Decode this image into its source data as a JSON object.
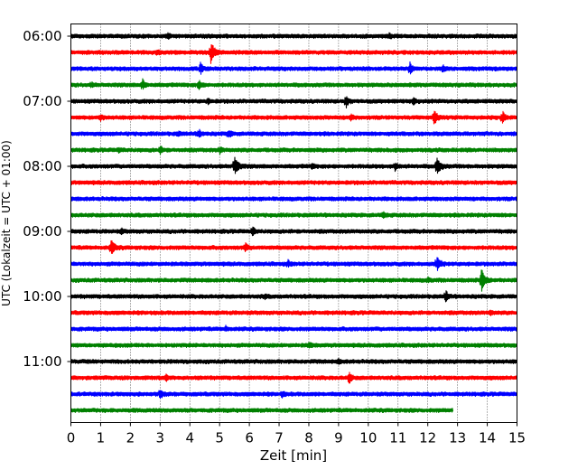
{
  "chart_data": {
    "type": "line",
    "subtype": "helicorder",
    "xlabel": "Zeit  [min]",
    "ylabel": "UTC (Lokalzeit = UTC + 01:00)",
    "xlim": [
      0,
      15
    ],
    "x_ticks": [
      "0",
      "1",
      "2",
      "3",
      "4",
      "5",
      "6",
      "7",
      "8",
      "9",
      "10",
      "11",
      "12",
      "13",
      "14",
      "15"
    ],
    "y_tick_labels": [
      "06:00",
      "07:00",
      "08:00",
      "09:00",
      "10:00",
      "11:00"
    ],
    "y_tick_rows": [
      0,
      4,
      8,
      12,
      16,
      20
    ],
    "grid": "vertical dotted lines at each minute",
    "row_minutes": 15,
    "color_cycle": [
      "#000000",
      "#ff0000",
      "#0000ff",
      "#008000"
    ],
    "rows": [
      {
        "start": "06:00",
        "end_min": 15,
        "events": [
          {
            "t": 3.25,
            "amp": 0.35
          },
          {
            "t": 10.7,
            "amp": 0.3
          }
        ]
      },
      {
        "start": "06:15",
        "end_min": 15,
        "events": [
          {
            "t": 4.7,
            "amp": 1.7
          },
          {
            "t": 2.9,
            "amp": 0.3
          }
        ]
      },
      {
        "start": "06:30",
        "end_min": 15,
        "events": [
          {
            "t": 4.35,
            "amp": 0.9
          },
          {
            "t": 11.4,
            "amp": 0.9
          },
          {
            "t": 12.5,
            "amp": 0.5
          }
        ]
      },
      {
        "start": "06:45",
        "end_min": 15,
        "events": [
          {
            "t": 2.4,
            "amp": 0.9
          },
          {
            "t": 4.3,
            "amp": 0.8
          },
          {
            "t": 0.7,
            "amp": 0.3
          }
        ]
      },
      {
        "start": "07:00",
        "end_min": 15,
        "events": [
          {
            "t": 9.25,
            "amp": 0.9
          },
          {
            "t": 11.5,
            "amp": 0.6
          },
          {
            "t": 4.6,
            "amp": 0.3
          }
        ]
      },
      {
        "start": "07:15",
        "end_min": 15,
        "events": [
          {
            "t": 12.2,
            "amp": 1.2
          },
          {
            "t": 14.5,
            "amp": 1.0
          },
          {
            "t": 1.0,
            "amp": 0.4
          },
          {
            "t": 9.4,
            "amp": 0.4
          }
        ]
      },
      {
        "start": "07:30",
        "end_min": 15,
        "events": [
          {
            "t": 4.3,
            "amp": 0.6
          },
          {
            "t": 5.3,
            "amp": 0.6
          },
          {
            "t": 3.6,
            "amp": 0.3
          }
        ]
      },
      {
        "start": "07:45",
        "end_min": 15,
        "events": [
          {
            "t": 3.0,
            "amp": 0.5
          },
          {
            "t": 5.0,
            "amp": 0.5
          },
          {
            "t": 1.6,
            "amp": 0.3
          }
        ]
      },
      {
        "start": "08:00",
        "end_min": 15,
        "events": [
          {
            "t": 5.5,
            "amp": 1.6
          },
          {
            "t": 12.3,
            "amp": 1.5
          },
          {
            "t": 10.9,
            "amp": 0.6
          },
          {
            "t": 8.1,
            "amp": 0.3
          }
        ]
      },
      {
        "start": "08:15",
        "end_min": 15,
        "events": []
      },
      {
        "start": "08:30",
        "end_min": 15,
        "events": []
      },
      {
        "start": "08:45",
        "end_min": 15,
        "events": [
          {
            "t": 10.5,
            "amp": 0.4
          }
        ]
      },
      {
        "start": "09:00",
        "end_min": 15,
        "events": [
          {
            "t": 6.1,
            "amp": 0.7
          },
          {
            "t": 1.7,
            "amp": 0.3
          }
        ]
      },
      {
        "start": "09:15",
        "end_min": 15,
        "events": [
          {
            "t": 1.35,
            "amp": 1.1
          },
          {
            "t": 5.85,
            "amp": 0.7
          }
        ]
      },
      {
        "start": "09:30",
        "end_min": 15,
        "events": [
          {
            "t": 12.3,
            "amp": 1.1
          },
          {
            "t": 7.3,
            "amp": 0.4
          }
        ]
      },
      {
        "start": "09:45",
        "end_min": 15,
        "events": [
          {
            "t": 13.8,
            "amp": 1.7
          },
          {
            "t": 12.0,
            "amp": 0.3
          }
        ]
      },
      {
        "start": "10:00",
        "end_min": 15,
        "events": [
          {
            "t": 12.6,
            "amp": 0.9
          },
          {
            "t": 6.5,
            "amp": 0.3
          }
        ]
      },
      {
        "start": "10:15",
        "end_min": 15,
        "events": [
          {
            "t": 14.1,
            "amp": 0.3
          }
        ]
      },
      {
        "start": "10:30",
        "end_min": 15,
        "events": [
          {
            "t": 5.2,
            "amp": 0.3
          }
        ]
      },
      {
        "start": "10:45",
        "end_min": 15,
        "events": [
          {
            "t": 8.0,
            "amp": 0.4
          }
        ]
      },
      {
        "start": "11:00",
        "end_min": 15,
        "events": [
          {
            "t": 9.0,
            "amp": 0.3
          }
        ]
      },
      {
        "start": "11:15",
        "end_min": 15,
        "events": [
          {
            "t": 9.35,
            "amp": 0.9
          },
          {
            "t": 3.2,
            "amp": 0.4
          }
        ]
      },
      {
        "start": "11:30",
        "end_min": 15,
        "events": [
          {
            "t": 3.0,
            "amp": 0.7
          },
          {
            "t": 7.1,
            "amp": 0.4
          }
        ]
      },
      {
        "start": "11:45",
        "end_min": 12.85,
        "events": []
      }
    ]
  }
}
